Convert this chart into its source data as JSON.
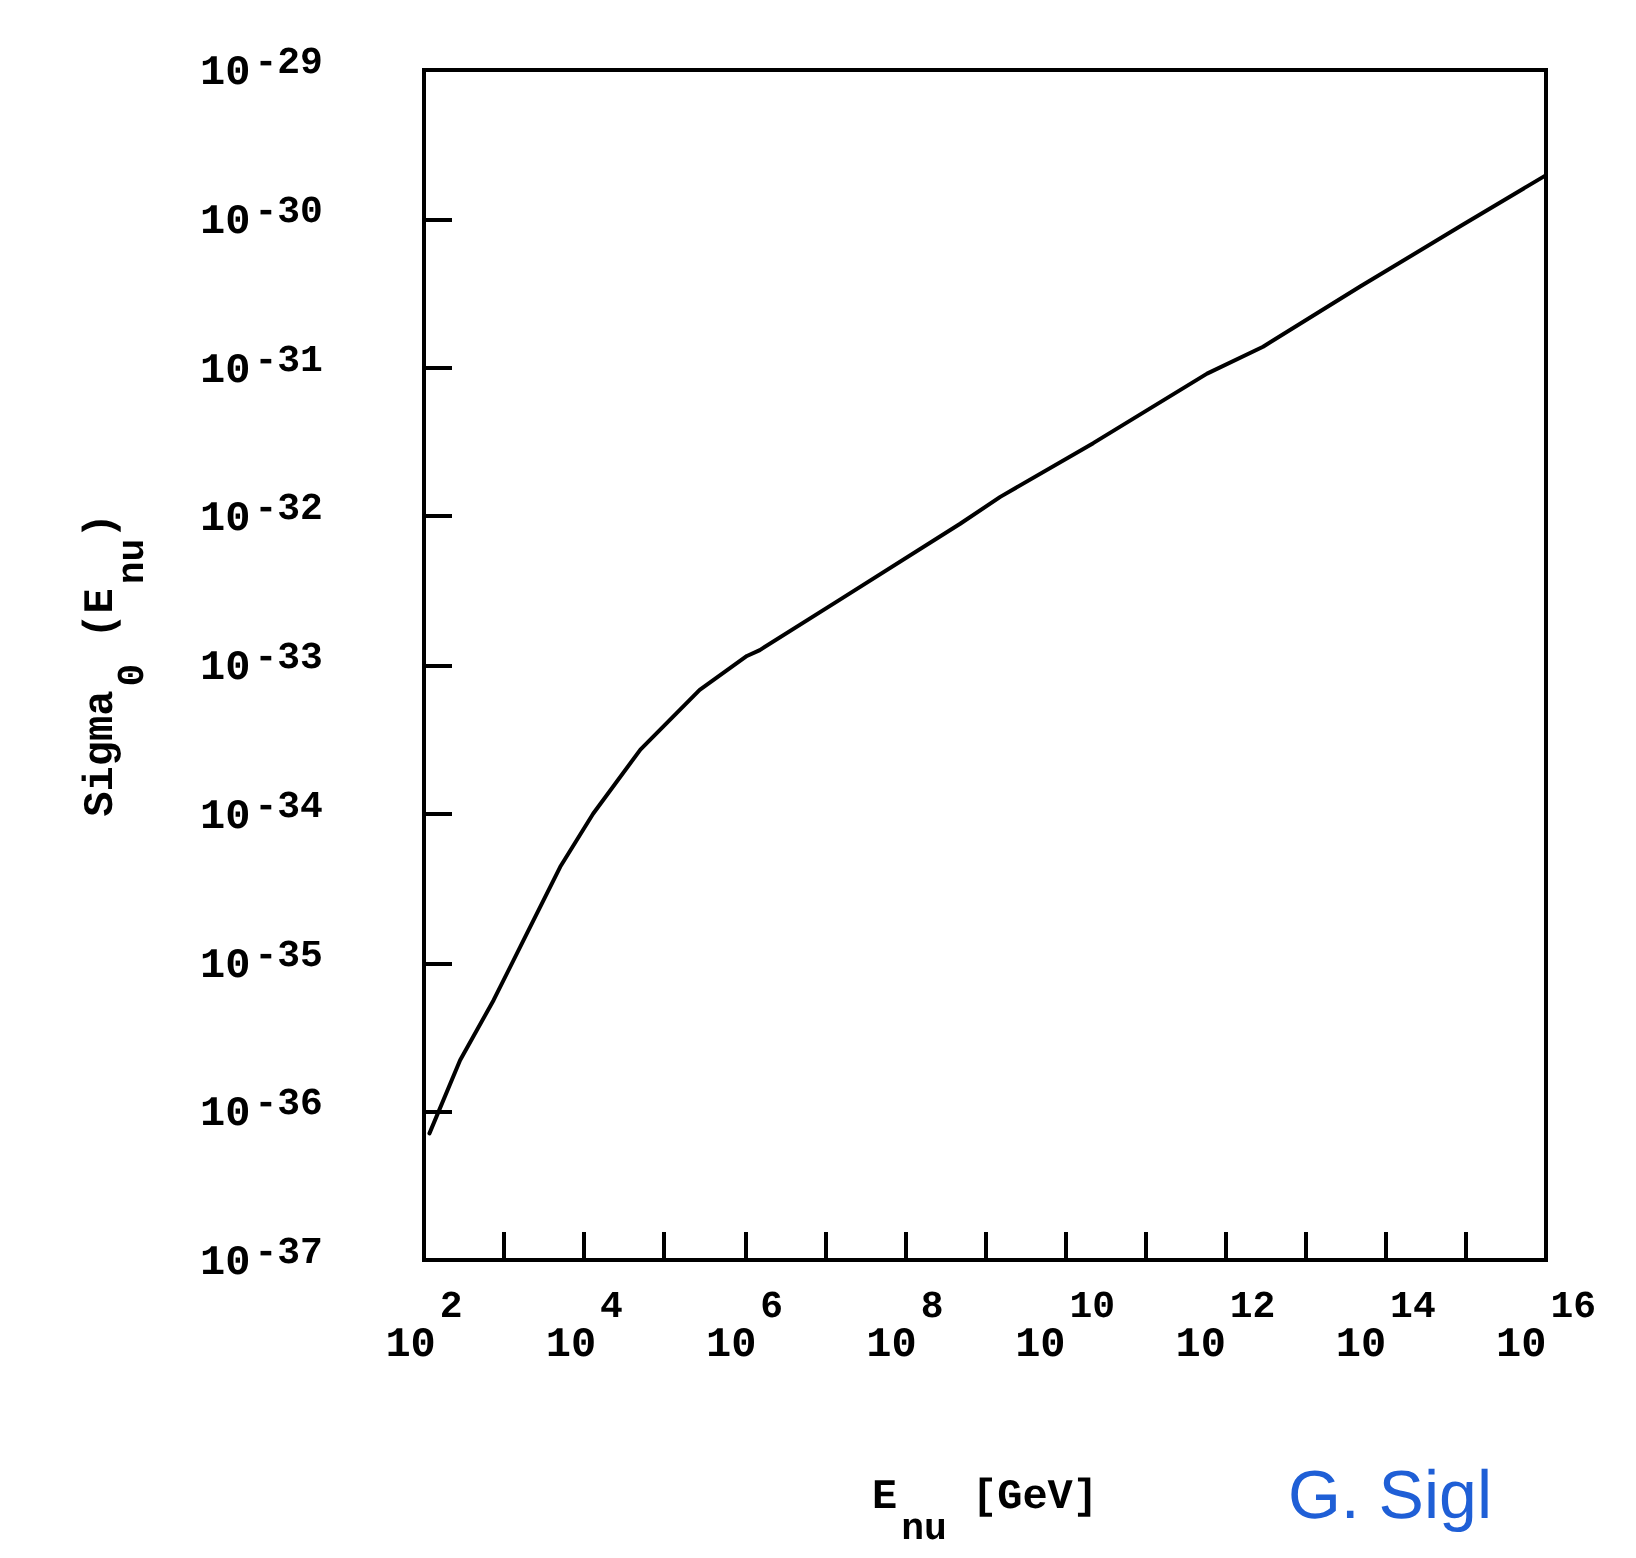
{
  "chart_data": {
    "type": "line",
    "xlabel": "E$_{nu}$ [GeV]",
    "ylabel": "Sigma$_{0}$ (E$_{nu}$)",
    "log": "xy",
    "grid": false,
    "marker": "none",
    "line_style": "solid",
    "xlim": [
      100.0,
      1e+16
    ],
    "xticks": [
      {
        "value": 100.0,
        "label": "10$^{2}$"
      },
      {
        "value": 1000.0,
        "label": null
      },
      {
        "value": 10000.0,
        "label": "10$^{4}$"
      },
      {
        "value": 100000.0,
        "label": null
      },
      {
        "value": 1000000.0,
        "label": "10$^{6}$"
      },
      {
        "value": 10000000.0,
        "label": null
      },
      {
        "value": 100000000.0,
        "label": "10$^{8}$"
      },
      {
        "value": 1000000000.0,
        "label": null
      },
      {
        "value": 10000000000.0,
        "label": "10$^{10}$"
      },
      {
        "value": 100000000000.0,
        "label": null
      },
      {
        "value": 1000000000000.0,
        "label": "10$^{12}$"
      },
      {
        "value": 10000000000000.0,
        "label": null
      },
      {
        "value": 100000000000000.0,
        "label": "10$^{14}$"
      },
      {
        "value": 1000000000000000.0,
        "label": null
      },
      {
        "value": 1e+16,
        "label": "10$^{16}$"
      }
    ],
    "ylim": [
      1e-37,
      1e-29
    ],
    "yticks": [
      {
        "value": 1e-37,
        "label": "10$^{-37}$"
      },
      {
        "value": 1e-36,
        "label": "10$^{-36}$"
      },
      {
        "value": 1e-35,
        "label": "10$^{-35}$"
      },
      {
        "value": 1e-34,
        "label": "10$^{-34}$"
      },
      {
        "value": 1e-33,
        "label": "10$^{-33}$"
      },
      {
        "value": 1e-32,
        "label": "10$^{-32}$"
      },
      {
        "value": 1e-31,
        "label": "10$^{-31}$"
      },
      {
        "value": 1e-30,
        "label": "10$^{-30}$"
      },
      {
        "value": 1e-29,
        "label": "10$^{-29}$"
      }
    ],
    "series": [
      {
        "color": "#000000",
        "x": [
          117,
          282,
          741,
          1905,
          5012,
          12882,
          50119,
          275423,
          1070000.0,
          1550000.0,
          15500000.0,
          490000000.0,
          1550000000.0,
          22400000000.0,
          590000000000.0,
          2950000000000.0,
          48000000000000.0,
          850000000000000.0,
          9800000000000000.0
        ],
        "values": [
          7.1e-37,
          2.2e-36,
          5.6e-36,
          1.55e-35,
          4.4e-35,
          1e-34,
          2.7e-34,
          6.8e-34,
          1.15e-33,
          1.26e-33,
          2.75e-33,
          8.9e-33,
          1.35e-32,
          3.1e-32,
          9.1e-32,
          1.38e-31,
          3.5e-31,
          8.9e-31,
          1.95e-30
        ]
      }
    ],
    "annotations": [
      "G. Sigl"
    ]
  }
}
